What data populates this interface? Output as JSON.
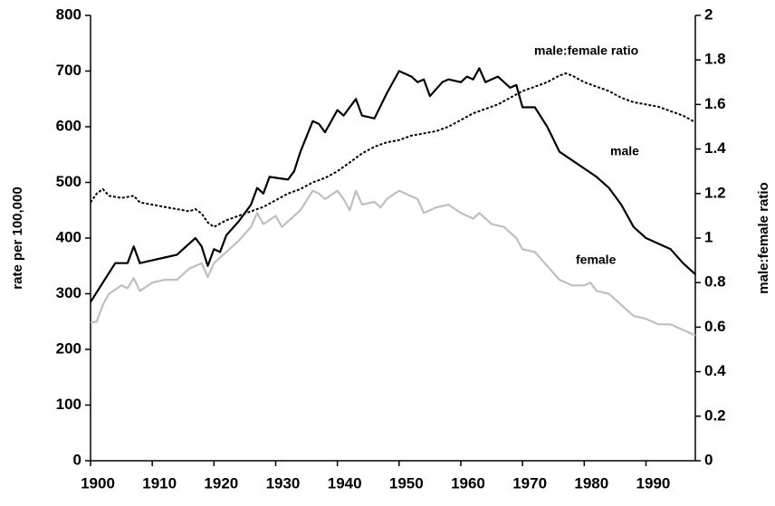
{
  "chart_data": {
    "type": "line",
    "y_label": "rate per 100,000",
    "y2_label": "male:female ratio",
    "xlim": [
      1900,
      1998
    ],
    "xticks": [
      1900,
      1910,
      1920,
      1930,
      1940,
      1950,
      1960,
      1970,
      1980,
      1990
    ],
    "ylim": [
      0,
      800
    ],
    "yticks": [
      0,
      100,
      200,
      300,
      400,
      500,
      600,
      700,
      800
    ],
    "y2lim": [
      0,
      2
    ],
    "y2ticks": [
      0,
      0.2,
      0.4,
      0.6,
      0.8,
      1,
      1.2,
      1.4,
      1.6,
      1.8,
      2
    ],
    "grid": false,
    "series": [
      {
        "name": "male",
        "color": "#000000",
        "dash": "solid",
        "x": [
          1900,
          1902,
          1904,
          1906,
          1907,
          1908,
          1910,
          1912,
          1914,
          1916,
          1917,
          1918,
          1919,
          1920,
          1921,
          1922,
          1924,
          1926,
          1927,
          1928,
          1929,
          1932,
          1933,
          1934,
          1936,
          1937,
          1938,
          1940,
          1941,
          1943,
          1944,
          1946,
          1948,
          1950,
          1952,
          1953,
          1954,
          1955,
          1957,
          1958,
          1960,
          1961,
          1962,
          1963,
          1964,
          1966,
          1968,
          1969,
          1970,
          1972,
          1974,
          1976,
          1978,
          1980,
          1982,
          1984,
          1986,
          1988,
          1990,
          1992,
          1994,
          1996,
          1998
        ],
        "values": [
          285,
          320,
          355,
          355,
          385,
          355,
          360,
          365,
          370,
          390,
          400,
          385,
          350,
          380,
          375,
          405,
          430,
          460,
          490,
          480,
          510,
          505,
          520,
          555,
          610,
          605,
          590,
          630,
          620,
          650,
          620,
          615,
          660,
          700,
          690,
          680,
          685,
          655,
          680,
          685,
          680,
          690,
          685,
          705,
          680,
          690,
          670,
          675,
          635,
          635,
          600,
          555,
          540,
          525,
          510,
          490,
          460,
          420,
          400,
          390,
          380,
          355,
          335
        ]
      },
      {
        "name": "female",
        "color": "#bfbfbf",
        "dash": "solid",
        "x": [
          1900,
          1901,
          1902,
          1903,
          1905,
          1906,
          1907,
          1908,
          1910,
          1912,
          1914,
          1916,
          1918,
          1919,
          1920,
          1922,
          1924,
          1926,
          1927,
          1928,
          1930,
          1931,
          1933,
          1934,
          1936,
          1937,
          1938,
          1940,
          1941,
          1942,
          1943,
          1944,
          1946,
          1947,
          1948,
          1950,
          1952,
          1953,
          1954,
          1956,
          1958,
          1960,
          1962,
          1963,
          1965,
          1967,
          1969,
          1970,
          1972,
          1974,
          1976,
          1978,
          1980,
          1981,
          1982,
          1984,
          1986,
          1988,
          1990,
          1992,
          1994,
          1996,
          1998
        ],
        "values": [
          248,
          250,
          280,
          300,
          315,
          310,
          328,
          305,
          320,
          325,
          325,
          345,
          355,
          330,
          355,
          375,
          395,
          420,
          445,
          425,
          440,
          420,
          440,
          450,
          485,
          480,
          470,
          485,
          470,
          450,
          485,
          460,
          465,
          455,
          470,
          485,
          475,
          470,
          445,
          455,
          460,
          445,
          435,
          445,
          425,
          420,
          400,
          380,
          375,
          350,
          325,
          315,
          315,
          320,
          305,
          300,
          280,
          260,
          255,
          245,
          245,
          235,
          225
        ]
      },
      {
        "name": "male:female ratio",
        "color": "#000000",
        "dash": "dotted",
        "axis": "y2",
        "x": [
          1900,
          1901,
          1902,
          1903,
          1905,
          1907,
          1908,
          1910,
          1912,
          1914,
          1916,
          1917,
          1918,
          1919,
          1920,
          1922,
          1924,
          1926,
          1928,
          1930,
          1932,
          1934,
          1936,
          1938,
          1940,
          1942,
          1944,
          1946,
          1948,
          1950,
          1952,
          1954,
          1956,
          1958,
          1960,
          1962,
          1964,
          1966,
          1968,
          1970,
          1972,
          1974,
          1976,
          1977,
          1978,
          1980,
          1982,
          1984,
          1986,
          1988,
          1990,
          1992,
          1994,
          1996,
          1998
        ],
        "values": [
          1.16,
          1.2,
          1.22,
          1.19,
          1.18,
          1.19,
          1.16,
          1.15,
          1.14,
          1.13,
          1.12,
          1.13,
          1.11,
          1.07,
          1.05,
          1.08,
          1.1,
          1.12,
          1.14,
          1.17,
          1.2,
          1.22,
          1.25,
          1.27,
          1.3,
          1.34,
          1.38,
          1.41,
          1.43,
          1.44,
          1.46,
          1.47,
          1.48,
          1.5,
          1.53,
          1.56,
          1.58,
          1.6,
          1.63,
          1.66,
          1.68,
          1.7,
          1.73,
          1.74,
          1.73,
          1.7,
          1.68,
          1.66,
          1.63,
          1.61,
          1.6,
          1.59,
          1.57,
          1.55,
          1.52
        ]
      }
    ]
  }
}
